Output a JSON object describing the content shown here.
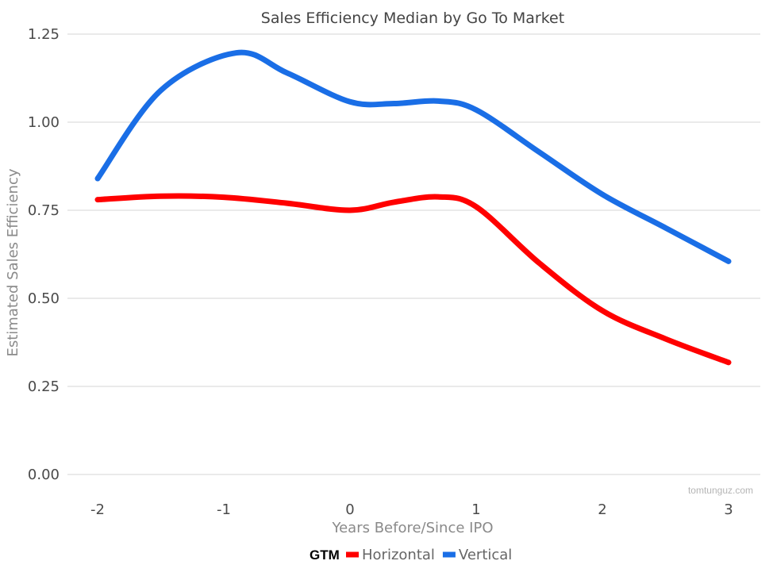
{
  "chart_data": {
    "type": "line",
    "title": "Sales Efficiency Median by Go To Market",
    "xlabel": "Years Before/Since IPO",
    "ylabel": "Estimated Sales Efficiency",
    "x": [
      -2,
      -1,
      0,
      1,
      2,
      3
    ],
    "x_tick_labels": [
      "-2",
      "-1",
      "0",
      "1",
      "2",
      "3"
    ],
    "y_tick_values": [
      0,
      0.25,
      0.5,
      0.75,
      1.0,
      1.25
    ],
    "y_tick_labels": [
      "0.00",
      "0.25",
      "0.50",
      "0.75",
      "1.00",
      "1.25"
    ],
    "xlim": [
      -2.1,
      3.05
    ],
    "ylim": [
      0,
      1.25
    ],
    "grid": "horizontal",
    "legend": {
      "title": "GTM",
      "position": "bottom"
    },
    "series": [
      {
        "name": "Horizontal",
        "color": "#ff0000",
        "points": [
          [
            -2,
            0.78
          ],
          [
            -1.5,
            0.79
          ],
          [
            -1,
            0.787
          ],
          [
            -0.5,
            0.77
          ],
          [
            0,
            0.75
          ],
          [
            0.35,
            0.773
          ],
          [
            0.7,
            0.788
          ],
          [
            1,
            0.76
          ],
          [
            1.5,
            0.6
          ],
          [
            2,
            0.465
          ],
          [
            2.5,
            0.385
          ],
          [
            3,
            0.318
          ]
        ]
      },
      {
        "name": "Vertical",
        "color": "#1a6ee6",
        "points": [
          [
            -2,
            0.84
          ],
          [
            -1.5,
            1.09
          ],
          [
            -0.9,
            1.197
          ],
          [
            -0.5,
            1.14
          ],
          [
            0,
            1.058
          ],
          [
            0.35,
            1.053
          ],
          [
            0.7,
            1.06
          ],
          [
            1,
            1.035
          ],
          [
            1.5,
            0.915
          ],
          [
            2,
            0.795
          ],
          [
            2.5,
            0.7
          ],
          [
            3,
            0.605
          ]
        ]
      }
    ]
  },
  "watermark": "tomtunguz.com"
}
